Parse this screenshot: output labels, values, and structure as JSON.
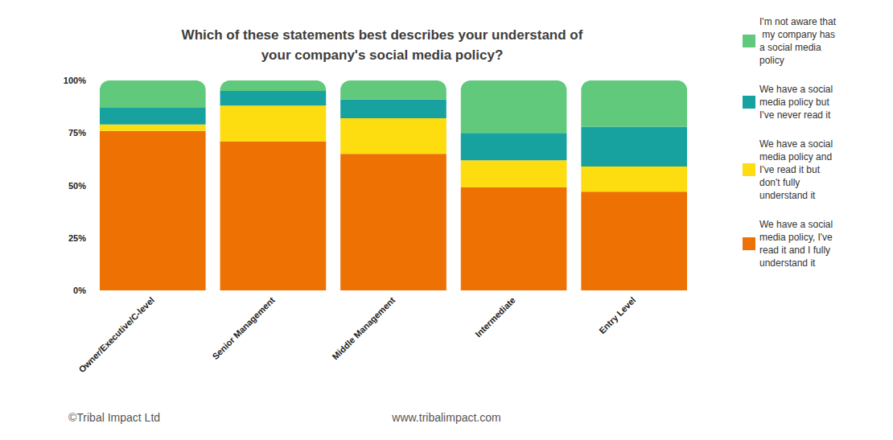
{
  "chart_data": {
    "type": "bar",
    "title": "Which of these statements best describes your understand of\nyour company's social media policy?",
    "categories": [
      "Owner/Executive/C-level",
      "Senior Management",
      "Middle Management",
      "Intermediate",
      "Entry Level"
    ],
    "series": [
      {
        "name": "We have a social media policy, I've read it and I fully understand it",
        "color": "#ee7203",
        "values": [
          76,
          71,
          65,
          49,
          47
        ]
      },
      {
        "name": "We have a social media policy and I've read it but don't fully understand it",
        "color": "#fddc10",
        "values": [
          3,
          17,
          17,
          13,
          12
        ]
      },
      {
        "name": "We have a social media policy but I've never read it",
        "color": "#17a2a0",
        "values": [
          8,
          7,
          9,
          13,
          19
        ]
      },
      {
        "name": "I'm not aware that my company has a social media policy",
        "color": "#61c97c",
        "values": [
          13,
          5,
          9,
          25,
          22
        ]
      }
    ],
    "ylim": [
      0,
      100
    ],
    "yticks": [
      {
        "value": 0,
        "label": "0%"
      },
      {
        "value": 25,
        "label": "25%"
      },
      {
        "value": 50,
        "label": "50%"
      },
      {
        "value": 75,
        "label": "75%"
      },
      {
        "value": 100,
        "label": "100%"
      }
    ],
    "stacked": true,
    "grid": false,
    "legend": "right",
    "data_labels": false,
    "annotations": [
      "©Tribal Impact Ltd",
      "www.tribalimpact.com"
    ]
  }
}
